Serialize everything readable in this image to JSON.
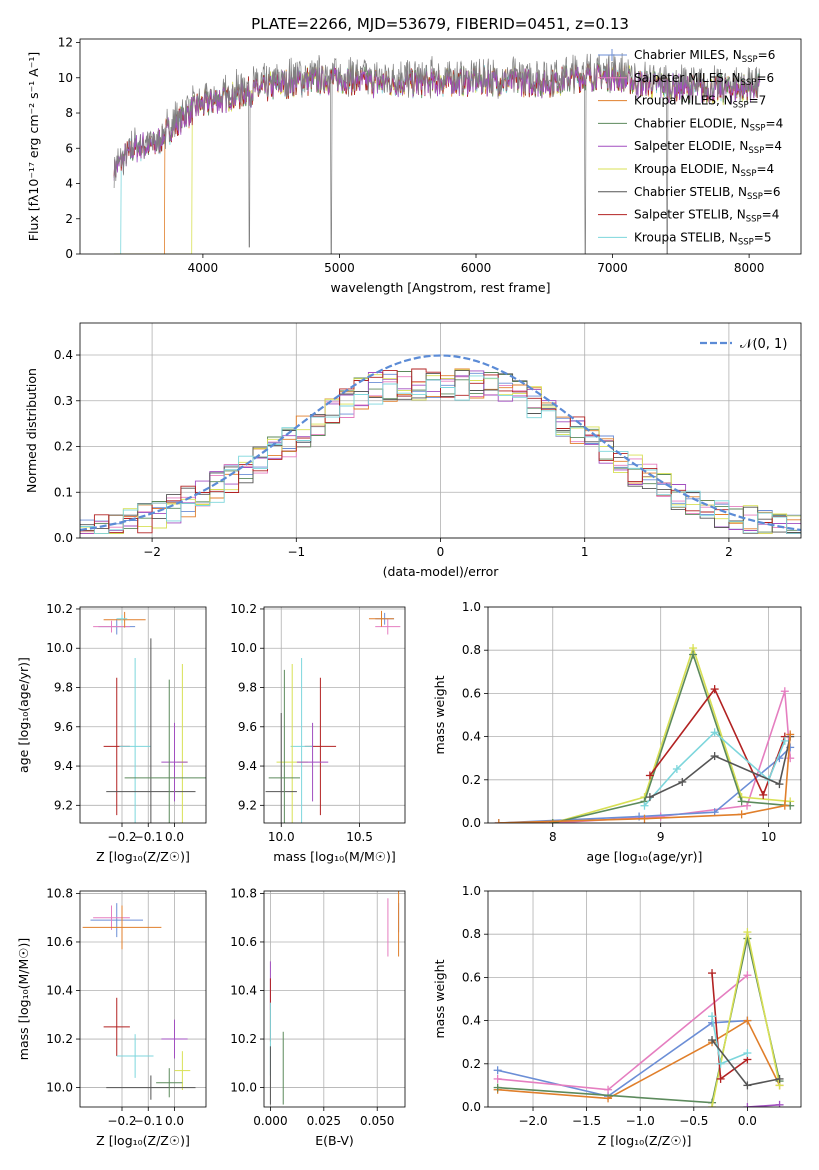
{
  "figure_title": "PLATE=2266, MJD=53679, FIBERID=0451, z=0.13",
  "legend_entries": [
    {
      "label": "Chabrier MILES, N",
      "sub": "SSP",
      "suffix": "=6",
      "color": "#6b8ed6"
    },
    {
      "label": "Salpeter MILES, N",
      "sub": "SSP",
      "suffix": "=6",
      "color": "#e57ec0"
    },
    {
      "label": "Kroupa MILES, N",
      "sub": "SSP",
      "suffix": "=7",
      "color": "#e07f2b"
    },
    {
      "label": "Chabrier ELODIE, N",
      "sub": "SSP",
      "suffix": "=4",
      "color": "#5c8a5c"
    },
    {
      "label": "Salpeter ELODIE, N",
      "sub": "SSP",
      "suffix": "=4",
      "color": "#a24fc0"
    },
    {
      "label": "Kroupa ELODIE, N",
      "sub": "SSP",
      "suffix": "=4",
      "color": "#d8e055"
    },
    {
      "label": "Chabrier STELIB, N",
      "sub": "SSP",
      "suffix": "=6",
      "color": "#555555"
    },
    {
      "label": "Salpeter STELIB, N",
      "sub": "SSP",
      "suffix": "=4",
      "color": "#b22222"
    },
    {
      "label": "Kroupa STELIB, N",
      "sub": "SSP",
      "suffix": "=5",
      "color": "#7dd6dc"
    }
  ],
  "chart_data": [
    {
      "id": "spectrum",
      "type": "line",
      "xlabel": "wavelength [Angstrom, rest frame]",
      "ylabel": "Flux [fλ10⁻¹⁷ erg cm⁻² s⁻¹ A⁻¹]",
      "xlim": [
        3100,
        8380
      ],
      "ylim": [
        0,
        12.2
      ],
      "x_ticks": [
        4000,
        5000,
        6000,
        7000,
        8000
      ],
      "y_ticks": [
        0,
        2,
        4,
        6,
        8,
        10,
        12
      ],
      "data_color": "#808080",
      "continuum": [
        [
          3350,
          5.0
        ],
        [
          3500,
          6.2
        ],
        [
          3650,
          6.4
        ],
        [
          3800,
          7.6
        ],
        [
          3950,
          8.6
        ],
        [
          4100,
          9.0
        ],
        [
          4300,
          9.4
        ],
        [
          4500,
          9.8
        ],
        [
          4700,
          10.1
        ],
        [
          5000,
          10.2
        ],
        [
          5300,
          10.0
        ],
        [
          5600,
          10.0
        ],
        [
          5900,
          10.1
        ],
        [
          6200,
          10.1
        ],
        [
          6500,
          10.0
        ],
        [
          6800,
          10.4
        ],
        [
          7000,
          10.4
        ],
        [
          7200,
          10.0
        ],
        [
          7500,
          9.7
        ],
        [
          7800,
          9.6
        ],
        [
          8080,
          9.8
        ]
      ],
      "model_edges": [
        {
          "color": "#e07f2b",
          "x_start": 3720
        },
        {
          "color": "#d8e055",
          "x_start": 3920
        },
        {
          "color": "#7dd6dc",
          "x_start": 3400
        }
      ],
      "spikes": [
        [
          4340,
          0.4
        ],
        [
          4940,
          0.0
        ],
        [
          6800,
          0.0
        ],
        [
          7400,
          0.0
        ]
      ]
    },
    {
      "id": "residuals",
      "type": "bar",
      "xlabel": "(data-model)/error",
      "ylabel": "Normed distribution",
      "xlim": [
        -2.5,
        2.5
      ],
      "ylim": [
        0,
        0.47
      ],
      "x_ticks": [
        -2,
        -1,
        0,
        1,
        2
      ],
      "y_ticks": [
        0.0,
        0.1,
        0.2,
        0.3,
        0.4
      ],
      "reference_label": "𝒩(0, 1)",
      "reference_color": "#5b8bd6"
    },
    {
      "id": "age_vs_z",
      "type": "scatter",
      "xlabel": "Z [log₁₀(Z/Z☉)]",
      "ylabel": "age  [log₁₀(age/yr)]",
      "xlim": [
        -0.36,
        0.12
      ],
      "ylim": [
        9.11,
        10.21
      ],
      "x_ticks": [
        -0.2,
        -0.1,
        0.0
      ],
      "y_ticks": [
        9.2,
        9.4,
        9.6,
        9.8,
        10.0,
        10.2
      ],
      "points": [
        {
          "x": -0.22,
          "xerr": 0.07,
          "y": 10.11,
          "yerr": 0.04,
          "color": "#6b8ed6"
        },
        {
          "x": -0.24,
          "xerr": 0.07,
          "y": 10.11,
          "yerr": 0.03,
          "color": "#e57ec0"
        },
        {
          "x": -0.19,
          "xerr": 0.08,
          "y": 10.145,
          "yerr": 0.04,
          "color": "#e07f2b"
        },
        {
          "x": -0.2,
          "xerr": 0.02,
          "y": 10.15,
          "yerr": 0.02,
          "color": "#7dd6dc"
        },
        {
          "x": -0.22,
          "xerr": 0.05,
          "y": 9.5,
          "yerr": 0.35,
          "color": "#b22222"
        },
        {
          "x": -0.15,
          "xerr": 0.06,
          "y": 9.5,
          "yerr": 0.45,
          "color": "#7dd6dc"
        },
        {
          "x": 0.03,
          "xerr": 0.02,
          "y": 9.42,
          "yerr": 0.5,
          "color": "#d8e055"
        },
        {
          "x": -0.09,
          "xerr": 0.17,
          "y": 9.27,
          "yerr": 0.78,
          "color": "#555555"
        },
        {
          "x": 0.0,
          "xerr": 0.05,
          "y": 9.42,
          "yerr": 0.2,
          "color": "#a24fc0"
        },
        {
          "x": -0.02,
          "xerr": 0.17,
          "y": 9.34,
          "yerr": 0.5,
          "color": "#5c8a5c"
        }
      ]
    },
    {
      "id": "age_vs_mass",
      "type": "scatter",
      "xlabel": "mass [log₁₀(M/M☉)]",
      "ylabel": "",
      "xlim": [
        9.89,
        10.79
      ],
      "ylim": [
        9.11,
        10.21
      ],
      "x_ticks": [
        10.0,
        10.5
      ],
      "y_ticks": [
        9.2,
        9.4,
        9.6,
        9.8,
        10.0,
        10.2
      ],
      "points": [
        {
          "x": 10.66,
          "xerr": 0.06,
          "y": 10.15,
          "yerr": 0.03,
          "color": "#6b8ed6"
        },
        {
          "x": 10.68,
          "xerr": 0.08,
          "y": 10.11,
          "yerr": 0.04,
          "color": "#e57ec0"
        },
        {
          "x": 10.64,
          "xerr": 0.08,
          "y": 10.15,
          "yerr": 0.04,
          "color": "#e07f2b"
        },
        {
          "x": 10.25,
          "xerr": 0.1,
          "y": 9.5,
          "yerr": 0.35,
          "color": "#b22222"
        },
        {
          "x": 10.13,
          "xerr": 0.07,
          "y": 9.5,
          "yerr": 0.45,
          "color": "#7dd6dc"
        },
        {
          "x": 10.07,
          "xerr": 0.1,
          "y": 9.42,
          "yerr": 0.5,
          "color": "#d8e055"
        },
        {
          "x": 10.0,
          "xerr": 0.1,
          "y": 9.27,
          "yerr": 0.4,
          "color": "#555555"
        },
        {
          "x": 10.2,
          "xerr": 0.1,
          "y": 9.42,
          "yerr": 0.2,
          "color": "#a24fc0"
        },
        {
          "x": 10.02,
          "xerr": 0.1,
          "y": 9.34,
          "yerr": 0.55,
          "color": "#5c8a5c"
        }
      ]
    },
    {
      "id": "weight_vs_age",
      "type": "line",
      "xlabel": "age  [log₁₀(age/yr)]",
      "ylabel": "mass weight",
      "xlim": [
        7.4,
        10.3
      ],
      "ylim": [
        0,
        1.0
      ],
      "x_ticks": [
        8,
        9,
        10
      ],
      "y_ticks": [
        0.0,
        0.2,
        0.4,
        0.6,
        0.8,
        1.0
      ],
      "series": [
        {
          "color": "#e57ec0",
          "x": [
            7.5,
            8.0,
            9.0,
            9.8,
            10.15,
            10.2
          ],
          "y": [
            0.0,
            0.0,
            0.03,
            0.08,
            0.61,
            0.3
          ]
        },
        {
          "color": "#6b8ed6",
          "x": [
            7.5,
            8.8,
            9.5,
            10.1,
            10.2
          ],
          "y": [
            0.0,
            0.03,
            0.05,
            0.3,
            0.35
          ]
        },
        {
          "color": "#d8e055",
          "x": [
            8.0,
            8.85,
            9.3,
            9.75,
            10.2
          ],
          "y": [
            0.0,
            0.12,
            0.81,
            0.12,
            0.1
          ]
        },
        {
          "color": "#5c8a5c",
          "x": [
            8.0,
            8.85,
            9.3,
            9.75,
            10.2
          ],
          "y": [
            0.0,
            0.1,
            0.78,
            0.1,
            0.08
          ]
        },
        {
          "color": "#b22222",
          "x": [
            8.9,
            9.5,
            9.95,
            10.15
          ],
          "y": [
            0.22,
            0.62,
            0.13,
            0.4
          ]
        },
        {
          "color": "#7dd6dc",
          "x": [
            8.85,
            9.15,
            9.5,
            10.0,
            10.15
          ],
          "y": [
            0.08,
            0.25,
            0.42,
            0.2,
            0.38
          ]
        },
        {
          "color": "#555555",
          "x": [
            8.9,
            9.2,
            9.5,
            10.1,
            10.2
          ],
          "y": [
            0.12,
            0.19,
            0.31,
            0.18,
            0.4
          ]
        },
        {
          "color": "#e07f2b",
          "x": [
            7.5,
            8.85,
            9.75,
            10.15,
            10.2
          ],
          "y": [
            0.0,
            0.02,
            0.04,
            0.08,
            0.41
          ]
        }
      ]
    },
    {
      "id": "mass_vs_z",
      "type": "scatter",
      "xlabel": "Z [log₁₀(Z/Z☉)]",
      "ylabel": "mass [log₁₀(M/M☉)]",
      "xlim": [
        -0.36,
        0.12
      ],
      "ylim": [
        9.92,
        10.81
      ],
      "x_ticks": [
        -0.2,
        -0.1,
        0.0
      ],
      "y_ticks": [
        10.0,
        10.2,
        10.4,
        10.6,
        10.8
      ],
      "points": [
        {
          "x": -0.22,
          "xerr": 0.1,
          "y": 10.69,
          "yerr": 0.07,
          "color": "#6b8ed6"
        },
        {
          "x": -0.24,
          "xerr": 0.07,
          "y": 10.7,
          "yerr": 0.05,
          "color": "#e57ec0"
        },
        {
          "x": -0.2,
          "xerr": 0.15,
          "y": 10.66,
          "yerr": 0.09,
          "color": "#e07f2b"
        },
        {
          "x": -0.22,
          "xerr": 0.05,
          "y": 10.25,
          "yerr": 0.12,
          "color": "#b22222"
        },
        {
          "x": -0.15,
          "xerr": 0.07,
          "y": 10.13,
          "yerr": 0.09,
          "color": "#7dd6dc"
        },
        {
          "x": 0.03,
          "xerr": 0.03,
          "y": 10.07,
          "yerr": 0.08,
          "color": "#d8e055"
        },
        {
          "x": -0.09,
          "xerr": 0.17,
          "y": 10.0,
          "yerr": 0.05,
          "color": "#555555"
        },
        {
          "x": 0.0,
          "xerr": 0.05,
          "y": 10.2,
          "yerr": 0.08,
          "color": "#a24fc0"
        },
        {
          "x": -0.02,
          "xerr": 0.05,
          "y": 10.02,
          "yerr": 0.06,
          "color": "#5c8a5c"
        }
      ]
    },
    {
      "id": "mass_vs_ebv",
      "type": "scatter",
      "xlabel": "E(B-V)",
      "ylabel": "",
      "xlim": [
        -0.003,
        0.063
      ],
      "ylim": [
        9.92,
        10.81
      ],
      "x_ticks": [
        0.0,
        0.025,
        0.05
      ],
      "x_tick_labels": [
        "0.000",
        "0.025",
        "0.050"
      ],
      "y_ticks": [
        10.0,
        10.2,
        10.4,
        10.6,
        10.8
      ],
      "points": [
        {
          "x": 0.06,
          "xerr": 0.0,
          "y": 10.7,
          "yerr": 0.06,
          "color": "#6b8ed6"
        },
        {
          "x": 0.055,
          "xerr": 0.0,
          "y": 10.66,
          "yerr": 0.12,
          "color": "#e57ec0"
        },
        {
          "x": 0.06,
          "xerr": 0.0,
          "y": 10.68,
          "yerr": 0.14,
          "color": "#e07f2b"
        },
        {
          "x": 0.0,
          "xerr": 0.0,
          "y": 10.42,
          "yerr": 0.1,
          "color": "#a24fc0"
        },
        {
          "x": 0.0,
          "xerr": 0.0,
          "y": 10.32,
          "yerr": 0.13,
          "color": "#b22222"
        },
        {
          "x": 0.0,
          "xerr": 0.0,
          "y": 10.2,
          "yerr": 0.15,
          "color": "#7dd6dc"
        },
        {
          "x": 0.006,
          "xerr": 0.0,
          "y": 10.08,
          "yerr": 0.15,
          "color": "#5c8a5c"
        },
        {
          "x": 0.0,
          "xerr": 0.0,
          "y": 10.05,
          "yerr": 0.12,
          "color": "#555555"
        }
      ]
    },
    {
      "id": "weight_vs_z",
      "type": "line",
      "xlabel": "Z [log₁₀(Z/Z☉)]",
      "ylabel": "mass weight",
      "xlim": [
        -2.42,
        0.5
      ],
      "ylim": [
        0,
        1.0
      ],
      "x_ticks": [
        -2.0,
        -1.5,
        -1.0,
        -0.5,
        0.0
      ],
      "y_ticks": [
        0.0,
        0.2,
        0.4,
        0.6,
        0.8,
        1.0
      ],
      "series": [
        {
          "color": "#6b8ed6",
          "x": [
            -2.33,
            -1.3,
            -0.33,
            0.0
          ],
          "y": [
            0.17,
            0.05,
            0.39,
            0.4
          ]
        },
        {
          "color": "#e57ec0",
          "x": [
            -2.33,
            -1.3,
            0.0
          ],
          "y": [
            0.13,
            0.08,
            0.61
          ]
        },
        {
          "color": "#e07f2b",
          "x": [
            -2.33,
            -1.3,
            -0.33,
            0.0,
            0.3
          ],
          "y": [
            0.08,
            0.04,
            0.3,
            0.4,
            0.1
          ]
        },
        {
          "color": "#5c8a5c",
          "x": [
            -2.33,
            -0.33,
            0.0,
            0.3
          ],
          "y": [
            0.09,
            0.02,
            0.78,
            0.12
          ]
        },
        {
          "color": "#d8e055",
          "x": [
            -0.33,
            0.0,
            0.3
          ],
          "y": [
            0.0,
            0.81,
            0.1
          ]
        },
        {
          "color": "#b22222",
          "x": [
            -0.33,
            -0.25,
            0.0
          ],
          "y": [
            0.62,
            0.13,
            0.22
          ]
        },
        {
          "color": "#7dd6dc",
          "x": [
            -0.33,
            -0.25,
            0.0
          ],
          "y": [
            0.42,
            0.2,
            0.25
          ]
        },
        {
          "color": "#555555",
          "x": [
            -0.33,
            0.0,
            0.3
          ],
          "y": [
            0.31,
            0.1,
            0.13
          ]
        },
        {
          "color": "#a24fc0",
          "x": [
            0.0,
            0.3
          ],
          "y": [
            0.0,
            0.01
          ]
        }
      ]
    }
  ]
}
